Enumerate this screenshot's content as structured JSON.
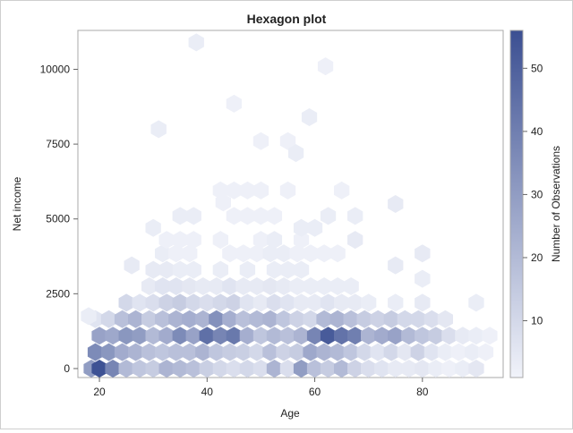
{
  "chart_data": {
    "type": "heatmap",
    "subtype": "hexbin",
    "title": "Hexagon plot",
    "xlabel": "Age",
    "ylabel": "Net income",
    "xlim": [
      16,
      95
    ],
    "ylim": [
      -300,
      11300
    ],
    "xticks": [
      20,
      40,
      60,
      80
    ],
    "yticks": [
      0,
      2500,
      5000,
      7500,
      10000
    ],
    "colorbar": {
      "label": "Number of Observations",
      "min": 1,
      "max": 56,
      "ticks": [
        10,
        20,
        30,
        40,
        50
      ],
      "low_color": "#f1f3fa",
      "high_color": "#3b4f92"
    },
    "hexbins": [
      {
        "x": 18.5,
        "y": 0,
        "count": 30
      },
      {
        "x": 20.0,
        "y": 0,
        "count": 55
      },
      {
        "x": 22.5,
        "y": 0,
        "count": 38
      },
      {
        "x": 25.0,
        "y": 0,
        "count": 20
      },
      {
        "x": 27.5,
        "y": 0,
        "count": 16
      },
      {
        "x": 30.0,
        "y": 0,
        "count": 14
      },
      {
        "x": 32.5,
        "y": 0,
        "count": 22
      },
      {
        "x": 35.0,
        "y": 0,
        "count": 20
      },
      {
        "x": 37.5,
        "y": 0,
        "count": 18
      },
      {
        "x": 40.0,
        "y": 0,
        "count": 13
      },
      {
        "x": 42.5,
        "y": 0,
        "count": 10
      },
      {
        "x": 45.0,
        "y": 0,
        "count": 8
      },
      {
        "x": 47.5,
        "y": 0,
        "count": 10
      },
      {
        "x": 50.0,
        "y": 0,
        "count": 8
      },
      {
        "x": 52.5,
        "y": 0,
        "count": 22
      },
      {
        "x": 55.0,
        "y": 0,
        "count": 8
      },
      {
        "x": 57.5,
        "y": 0,
        "count": 30
      },
      {
        "x": 60.0,
        "y": 0,
        "count": 18
      },
      {
        "x": 62.5,
        "y": 0,
        "count": 14
      },
      {
        "x": 65.0,
        "y": 0,
        "count": 20
      },
      {
        "x": 67.5,
        "y": 0,
        "count": 12
      },
      {
        "x": 70.0,
        "y": 0,
        "count": 8
      },
      {
        "x": 72.5,
        "y": 0,
        "count": 6
      },
      {
        "x": 75.0,
        "y": 0,
        "count": 4
      },
      {
        "x": 77.5,
        "y": 0,
        "count": 4
      },
      {
        "x": 80.0,
        "y": 0,
        "count": 5
      },
      {
        "x": 82.5,
        "y": 0,
        "count": 3
      },
      {
        "x": 85.0,
        "y": 0,
        "count": 2
      },
      {
        "x": 87.5,
        "y": 0,
        "count": 3
      },
      {
        "x": 90.0,
        "y": 0,
        "count": 5
      },
      {
        "x": 19.25,
        "y": 550,
        "count": 36
      },
      {
        "x": 21.75,
        "y": 550,
        "count": 32
      },
      {
        "x": 24.25,
        "y": 550,
        "count": 25
      },
      {
        "x": 26.75,
        "y": 550,
        "count": 22
      },
      {
        "x": 29.25,
        "y": 550,
        "count": 18
      },
      {
        "x": 31.75,
        "y": 550,
        "count": 16
      },
      {
        "x": 34.25,
        "y": 550,
        "count": 18
      },
      {
        "x": 36.75,
        "y": 550,
        "count": 18
      },
      {
        "x": 39.25,
        "y": 550,
        "count": 22
      },
      {
        "x": 41.75,
        "y": 550,
        "count": 16
      },
      {
        "x": 44.25,
        "y": 550,
        "count": 14
      },
      {
        "x": 46.75,
        "y": 550,
        "count": 13
      },
      {
        "x": 49.25,
        "y": 550,
        "count": 10
      },
      {
        "x": 51.75,
        "y": 550,
        "count": 18
      },
      {
        "x": 54.25,
        "y": 550,
        "count": 12
      },
      {
        "x": 56.75,
        "y": 550,
        "count": 14
      },
      {
        "x": 59.25,
        "y": 550,
        "count": 26
      },
      {
        "x": 61.75,
        "y": 550,
        "count": 22
      },
      {
        "x": 64.25,
        "y": 550,
        "count": 20
      },
      {
        "x": 66.75,
        "y": 550,
        "count": 16
      },
      {
        "x": 69.25,
        "y": 550,
        "count": 10
      },
      {
        "x": 71.75,
        "y": 550,
        "count": 6
      },
      {
        "x": 74.25,
        "y": 550,
        "count": 10
      },
      {
        "x": 76.75,
        "y": 550,
        "count": 5
      },
      {
        "x": 79.25,
        "y": 550,
        "count": 12
      },
      {
        "x": 81.75,
        "y": 550,
        "count": 6
      },
      {
        "x": 84.25,
        "y": 550,
        "count": 3
      },
      {
        "x": 86.75,
        "y": 550,
        "count": 2
      },
      {
        "x": 89.25,
        "y": 550,
        "count": 3
      },
      {
        "x": 91.75,
        "y": 550,
        "count": 2
      },
      {
        "x": 20.0,
        "y": 1100,
        "count": 28
      },
      {
        "x": 22.5,
        "y": 1100,
        "count": 26
      },
      {
        "x": 25.0,
        "y": 1100,
        "count": 32
      },
      {
        "x": 27.5,
        "y": 1100,
        "count": 30
      },
      {
        "x": 30.0,
        "y": 1100,
        "count": 20
      },
      {
        "x": 32.5,
        "y": 1100,
        "count": 25
      },
      {
        "x": 35.0,
        "y": 1100,
        "count": 36
      },
      {
        "x": 37.5,
        "y": 1100,
        "count": 28
      },
      {
        "x": 40.0,
        "y": 1100,
        "count": 45
      },
      {
        "x": 42.5,
        "y": 1100,
        "count": 38
      },
      {
        "x": 45.0,
        "y": 1100,
        "count": 42
      },
      {
        "x": 47.5,
        "y": 1100,
        "count": 24
      },
      {
        "x": 50.0,
        "y": 1100,
        "count": 16
      },
      {
        "x": 52.5,
        "y": 1100,
        "count": 20
      },
      {
        "x": 55.0,
        "y": 1100,
        "count": 18
      },
      {
        "x": 57.5,
        "y": 1100,
        "count": 22
      },
      {
        "x": 60.0,
        "y": 1100,
        "count": 38
      },
      {
        "x": 62.5,
        "y": 1100,
        "count": 52
      },
      {
        "x": 65.0,
        "y": 1100,
        "count": 44
      },
      {
        "x": 67.5,
        "y": 1100,
        "count": 40
      },
      {
        "x": 70.0,
        "y": 1100,
        "count": 22
      },
      {
        "x": 72.5,
        "y": 1100,
        "count": 25
      },
      {
        "x": 75.0,
        "y": 1100,
        "count": 28
      },
      {
        "x": 77.5,
        "y": 1100,
        "count": 20
      },
      {
        "x": 80.0,
        "y": 1100,
        "count": 16
      },
      {
        "x": 82.5,
        "y": 1100,
        "count": 14
      },
      {
        "x": 85.0,
        "y": 1100,
        "count": 8
      },
      {
        "x": 87.5,
        "y": 1100,
        "count": 4
      },
      {
        "x": 90.0,
        "y": 1100,
        "count": 3
      },
      {
        "x": 92.5,
        "y": 1100,
        "count": 2
      },
      {
        "x": 19.25,
        "y": 1650,
        "count": 6
      },
      {
        "x": 21.75,
        "y": 1650,
        "count": 10
      },
      {
        "x": 24.25,
        "y": 1650,
        "count": 18
      },
      {
        "x": 26.75,
        "y": 1650,
        "count": 22
      },
      {
        "x": 29.25,
        "y": 1650,
        "count": 14
      },
      {
        "x": 31.75,
        "y": 1650,
        "count": 18
      },
      {
        "x": 34.25,
        "y": 1650,
        "count": 22
      },
      {
        "x": 36.75,
        "y": 1650,
        "count": 24
      },
      {
        "x": 39.25,
        "y": 1650,
        "count": 22
      },
      {
        "x": 41.75,
        "y": 1650,
        "count": 34
      },
      {
        "x": 44.25,
        "y": 1650,
        "count": 24
      },
      {
        "x": 46.75,
        "y": 1650,
        "count": 18
      },
      {
        "x": 49.25,
        "y": 1650,
        "count": 20
      },
      {
        "x": 51.75,
        "y": 1650,
        "count": 22
      },
      {
        "x": 54.25,
        "y": 1650,
        "count": 16
      },
      {
        "x": 56.75,
        "y": 1650,
        "count": 12
      },
      {
        "x": 59.25,
        "y": 1650,
        "count": 10
      },
      {
        "x": 61.75,
        "y": 1650,
        "count": 20
      },
      {
        "x": 64.25,
        "y": 1650,
        "count": 22
      },
      {
        "x": 66.75,
        "y": 1650,
        "count": 18
      },
      {
        "x": 69.25,
        "y": 1650,
        "count": 14
      },
      {
        "x": 71.75,
        "y": 1650,
        "count": 12
      },
      {
        "x": 74.25,
        "y": 1650,
        "count": 14
      },
      {
        "x": 76.75,
        "y": 1650,
        "count": 10
      },
      {
        "x": 79.25,
        "y": 1650,
        "count": 10
      },
      {
        "x": 81.75,
        "y": 1650,
        "count": 8
      },
      {
        "x": 84.25,
        "y": 1650,
        "count": 5
      },
      {
        "x": 18.0,
        "y": 1750,
        "count": 3
      },
      {
        "x": 25.0,
        "y": 2200,
        "count": 10
      },
      {
        "x": 27.5,
        "y": 2200,
        "count": 6
      },
      {
        "x": 30.0,
        "y": 2200,
        "count": 8
      },
      {
        "x": 32.5,
        "y": 2200,
        "count": 12
      },
      {
        "x": 35.0,
        "y": 2200,
        "count": 14
      },
      {
        "x": 37.5,
        "y": 2200,
        "count": 10
      },
      {
        "x": 40.0,
        "y": 2200,
        "count": 8
      },
      {
        "x": 42.5,
        "y": 2200,
        "count": 10
      },
      {
        "x": 45.0,
        "y": 2200,
        "count": 12
      },
      {
        "x": 47.5,
        "y": 2200,
        "count": 6
      },
      {
        "x": 50.0,
        "y": 2200,
        "count": 4
      },
      {
        "x": 52.5,
        "y": 2200,
        "count": 8
      },
      {
        "x": 55.0,
        "y": 2200,
        "count": 6
      },
      {
        "x": 57.5,
        "y": 2200,
        "count": 4
      },
      {
        "x": 60.0,
        "y": 2200,
        "count": 4
      },
      {
        "x": 62.5,
        "y": 2200,
        "count": 6
      },
      {
        "x": 65.0,
        "y": 2200,
        "count": 4
      },
      {
        "x": 67.5,
        "y": 2200,
        "count": 4
      },
      {
        "x": 70.0,
        "y": 2200,
        "count": 3
      },
      {
        "x": 75.0,
        "y": 2200,
        "count": 3
      },
      {
        "x": 80.0,
        "y": 2200,
        "count": 4
      },
      {
        "x": 90.0,
        "y": 2200,
        "count": 3
      },
      {
        "x": 29.25,
        "y": 2750,
        "count": 4
      },
      {
        "x": 31.75,
        "y": 2750,
        "count": 6
      },
      {
        "x": 34.25,
        "y": 2750,
        "count": 6
      },
      {
        "x": 36.75,
        "y": 2750,
        "count": 5
      },
      {
        "x": 39.25,
        "y": 2750,
        "count": 4
      },
      {
        "x": 41.75,
        "y": 2750,
        "count": 4
      },
      {
        "x": 44.25,
        "y": 2750,
        "count": 6
      },
      {
        "x": 46.75,
        "y": 2750,
        "count": 4
      },
      {
        "x": 49.25,
        "y": 2750,
        "count": 4
      },
      {
        "x": 51.75,
        "y": 2750,
        "count": 5
      },
      {
        "x": 54.25,
        "y": 2750,
        "count": 4
      },
      {
        "x": 56.75,
        "y": 2750,
        "count": 3
      },
      {
        "x": 59.25,
        "y": 2750,
        "count": 3
      },
      {
        "x": 61.75,
        "y": 2750,
        "count": 3
      },
      {
        "x": 64.25,
        "y": 2750,
        "count": 3
      },
      {
        "x": 66.75,
        "y": 2750,
        "count": 3
      },
      {
        "x": 26.0,
        "y": 3450,
        "count": 4
      },
      {
        "x": 30.0,
        "y": 3300,
        "count": 4
      },
      {
        "x": 32.5,
        "y": 3300,
        "count": 4
      },
      {
        "x": 35.0,
        "y": 3300,
        "count": 3
      },
      {
        "x": 37.5,
        "y": 3300,
        "count": 3
      },
      {
        "x": 42.5,
        "y": 3300,
        "count": 3
      },
      {
        "x": 47.5,
        "y": 3300,
        "count": 3
      },
      {
        "x": 52.5,
        "y": 3300,
        "count": 3
      },
      {
        "x": 55.0,
        "y": 3300,
        "count": 3
      },
      {
        "x": 57.5,
        "y": 3300,
        "count": 3
      },
      {
        "x": 75.0,
        "y": 3450,
        "count": 4
      },
      {
        "x": 80.0,
        "y": 3000,
        "count": 3
      },
      {
        "x": 31.75,
        "y": 3850,
        "count": 3
      },
      {
        "x": 34.25,
        "y": 3850,
        "count": 2
      },
      {
        "x": 36.75,
        "y": 3850,
        "count": 2
      },
      {
        "x": 44.25,
        "y": 3850,
        "count": 2
      },
      {
        "x": 46.75,
        "y": 3850,
        "count": 2
      },
      {
        "x": 49.25,
        "y": 3850,
        "count": 2
      },
      {
        "x": 51.75,
        "y": 3850,
        "count": 3
      },
      {
        "x": 54.25,
        "y": 3850,
        "count": 3
      },
      {
        "x": 56.75,
        "y": 3850,
        "count": 2
      },
      {
        "x": 59.25,
        "y": 3850,
        "count": 2
      },
      {
        "x": 61.75,
        "y": 3850,
        "count": 2
      },
      {
        "x": 64.25,
        "y": 3850,
        "count": 2
      },
      {
        "x": 80.0,
        "y": 3850,
        "count": 4
      },
      {
        "x": 30.0,
        "y": 4700,
        "count": 3
      },
      {
        "x": 32.5,
        "y": 4300,
        "count": 2
      },
      {
        "x": 35.0,
        "y": 4300,
        "count": 2
      },
      {
        "x": 37.5,
        "y": 4300,
        "count": 2
      },
      {
        "x": 42.5,
        "y": 4300,
        "count": 2
      },
      {
        "x": 50.0,
        "y": 4300,
        "count": 2
      },
      {
        "x": 52.5,
        "y": 4300,
        "count": 3
      },
      {
        "x": 57.5,
        "y": 4300,
        "count": 2
      },
      {
        "x": 67.5,
        "y": 4300,
        "count": 4
      },
      {
        "x": 60.0,
        "y": 4700,
        "count": 3
      },
      {
        "x": 57.5,
        "y": 4700,
        "count": 3
      },
      {
        "x": 35.0,
        "y": 5100,
        "count": 3
      },
      {
        "x": 37.5,
        "y": 5100,
        "count": 3
      },
      {
        "x": 45.0,
        "y": 5100,
        "count": 2
      },
      {
        "x": 47.5,
        "y": 5100,
        "count": 2
      },
      {
        "x": 50.0,
        "y": 5100,
        "count": 2
      },
      {
        "x": 52.5,
        "y": 5100,
        "count": 2
      },
      {
        "x": 62.5,
        "y": 5100,
        "count": 3
      },
      {
        "x": 67.5,
        "y": 5100,
        "count": 3
      },
      {
        "x": 43.0,
        "y": 5550,
        "count": 2
      },
      {
        "x": 75.0,
        "y": 5500,
        "count": 4
      },
      {
        "x": 42.5,
        "y": 5950,
        "count": 2
      },
      {
        "x": 45.0,
        "y": 5950,
        "count": 2
      },
      {
        "x": 47.5,
        "y": 5950,
        "count": 2
      },
      {
        "x": 50.0,
        "y": 5950,
        "count": 2
      },
      {
        "x": 55.0,
        "y": 5950,
        "count": 2
      },
      {
        "x": 65.0,
        "y": 5950,
        "count": 2
      },
      {
        "x": 50.0,
        "y": 7600,
        "count": 2
      },
      {
        "x": 55.0,
        "y": 7600,
        "count": 2
      },
      {
        "x": 56.5,
        "y": 7200,
        "count": 3
      },
      {
        "x": 31.0,
        "y": 8000,
        "count": 3
      },
      {
        "x": 45.0,
        "y": 8850,
        "count": 2
      },
      {
        "x": 59.0,
        "y": 8400,
        "count": 3
      },
      {
        "x": 62.0,
        "y": 10100,
        "count": 2
      },
      {
        "x": 38.0,
        "y": 10900,
        "count": 3
      }
    ]
  }
}
